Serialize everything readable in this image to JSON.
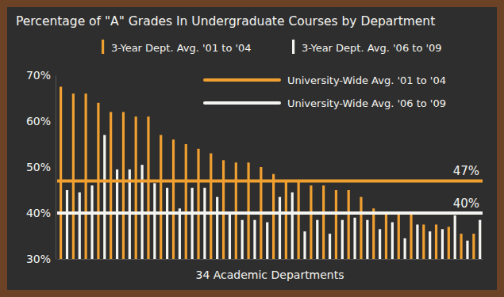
{
  "chart_data": {
    "type": "bar",
    "title": "Percentage of \"A\" Grades In Undergraduate Courses by Department",
    "x_label": "34 Academic Departments",
    "categories": [
      null,
      null,
      null,
      null,
      null,
      null,
      null,
      null,
      null,
      null,
      null,
      null,
      null,
      null,
      null,
      null,
      null,
      null,
      null,
      null,
      null,
      null,
      null,
      null,
      null,
      null,
      null,
      null,
      null,
      null,
      null,
      null,
      null,
      null
    ],
    "series": [
      {
        "name": "3-Year Dept. Avg. '01 to '04",
        "color": "#f0a030",
        "values": [
          67.5,
          66,
          66,
          64,
          62,
          62,
          61,
          61,
          57,
          56,
          55,
          54,
          53,
          51.5,
          51,
          51,
          50,
          48.5,
          47,
          47,
          46,
          46,
          45,
          45,
          43.5,
          41,
          40,
          40,
          40,
          37.5,
          37.5,
          37,
          35.5,
          35.5
        ]
      },
      {
        "name": "3-Year Dept. Avg. '06 to '09",
        "color": "#f4f4f0",
        "values": [
          45,
          44.5,
          46,
          57,
          49.5,
          49.5,
          50.5,
          46.5,
          45.5,
          41,
          45.5,
          45.5,
          43.5,
          40,
          38.5,
          38.5,
          38,
          43.5,
          44.5,
          36,
          38.5,
          35.5,
          38.5,
          39,
          38.5,
          36.5,
          38,
          34.5,
          37.5,
          36,
          36.5,
          39.5,
          34,
          38.5
        ]
      }
    ],
    "reference_lines": [
      {
        "name": "University-Wide Avg. '01 to '04",
        "value": 47,
        "value_label": "47%",
        "color": "#f0a030"
      },
      {
        "name": "University-Wide Avg. '06 to '09",
        "value": 40,
        "value_label": "40%",
        "color": "#f4f4f0"
      }
    ],
    "ylim": [
      30,
      70
    ],
    "yticks": [
      {
        "value": 30,
        "label": "30%"
      },
      {
        "value": 40,
        "label": "40%"
      },
      {
        "value": 50,
        "label": "50%"
      },
      {
        "value": 60,
        "label": "60%"
      },
      {
        "value": 70,
        "label": "70%"
      }
    ],
    "grid": false,
    "legend": "top",
    "tick_labels": "y"
  }
}
